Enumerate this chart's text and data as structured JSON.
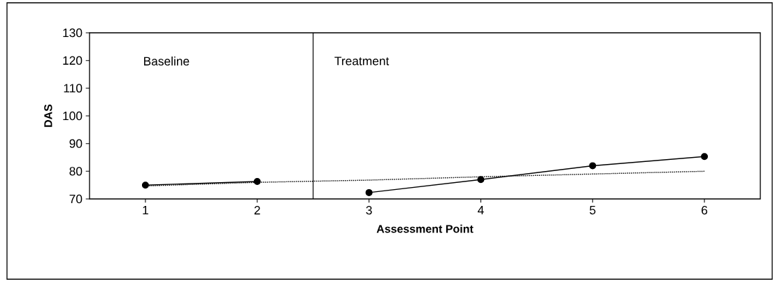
{
  "chart_data": {
    "type": "line",
    "xlabel": "Assessment Point",
    "ylabel": "DAS",
    "x": [
      1,
      2,
      3,
      4,
      5,
      6
    ],
    "series": [
      {
        "color": "#000000",
        "values": [
          75,
          76.3,
          null,
          null,
          null,
          null
        ],
        "marker": "circle",
        "line_style": "solid"
      },
      {
        "color": "#000000",
        "values": [
          null,
          null,
          72.3,
          77,
          82,
          85.3
        ],
        "marker": "circle",
        "line_style": "solid"
      },
      {
        "color": "#000000",
        "values": [
          74.7,
          76,
          76.8,
          78,
          79,
          80
        ],
        "marker": "none",
        "line_style": "dotted"
      }
    ],
    "xlim": [
      0.5,
      6.5
    ],
    "xticks": [
      1,
      2,
      3,
      4,
      5,
      6
    ],
    "ylim": [
      70,
      130
    ],
    "yticks": [
      70,
      80,
      90,
      100,
      110,
      120,
      130
    ],
    "ref_lines": [
      {
        "axis": "x",
        "value": 2.5,
        "color": "#000000",
        "line_style": "solid"
      }
    ],
    "annotations": [
      "Baseline",
      "Treatment"
    ]
  }
}
